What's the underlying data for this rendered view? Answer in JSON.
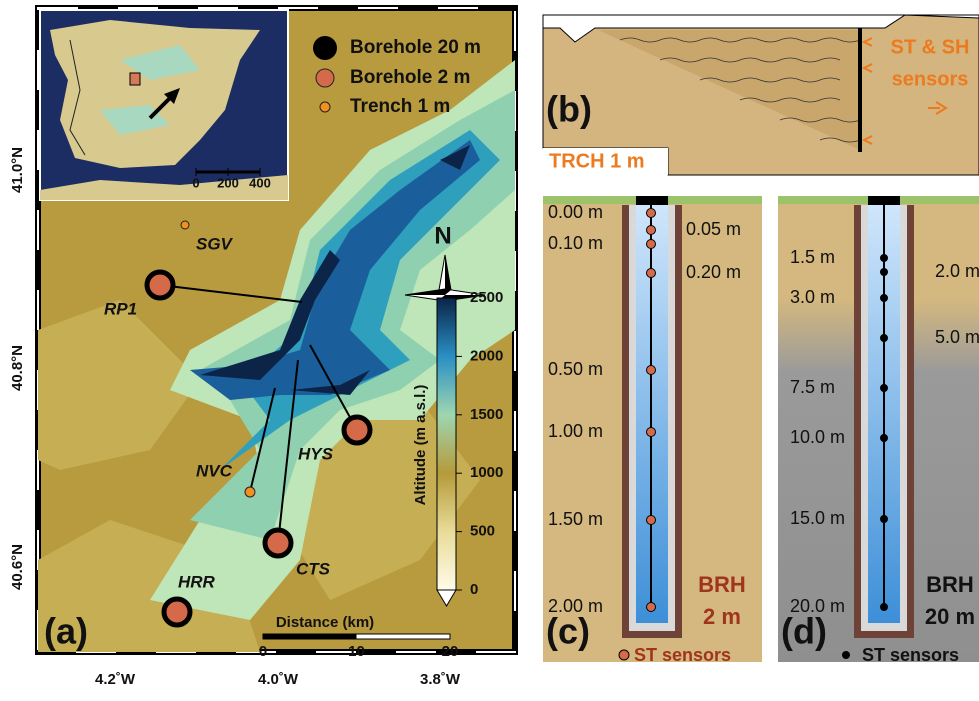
{
  "map": {
    "panel_label": "(a)",
    "legend": [
      "Borehole 20 m",
      "Borehole 2 m",
      "Trench 1 m"
    ],
    "sites": [
      "SGV",
      "RP1",
      "HYS",
      "NVC",
      "CTS",
      "HRR"
    ],
    "north": "N",
    "latitude_labels": [
      "41.0°N",
      "40.8°N",
      "40.6°N"
    ],
    "longitude_labels": [
      "4.2˚W",
      "4.0˚W",
      "3.8˚W"
    ],
    "inset_scale": {
      "ticks": [
        0,
        200,
        400
      ],
      "lim": [
        0,
        400
      ]
    },
    "colorbar": {
      "title": "Altitude (m a.s.l.)",
      "lim": [
        0,
        2500
      ],
      "ticks": [
        0,
        500,
        1000,
        1500,
        2000,
        2500
      ]
    },
    "scale_bar": {
      "title": "Distance (km)",
      "lim": [
        0,
        20
      ],
      "ticks": [
        0,
        10,
        20
      ]
    }
  },
  "panel_b": {
    "panel_label": "(b)",
    "label": "TRCH 1 m",
    "sensors": [
      "ST & SH",
      "sensors"
    ]
  },
  "panel_c": {
    "panel_label": "(c)",
    "depths_left": [
      "0.00 m",
      "0.10 m",
      "0.50 m",
      "1.00 m",
      "1.50 m",
      "2.00 m"
    ],
    "depths_right": [
      "0.05 m",
      "0.20 m"
    ],
    "name": [
      "BRH",
      "2 m"
    ],
    "legend": "ST sensors"
  },
  "panel_d": {
    "panel_label": "(d)",
    "depths_left": [
      "1.5 m",
      "3.0 m",
      "7.5 m",
      "10.0 m",
      "15.0 m",
      "20.0 m"
    ],
    "depths_right": [
      "2.0 m",
      "5.0 m"
    ],
    "name": [
      "BRH",
      "20 m"
    ],
    "legend": "ST sensors"
  }
}
